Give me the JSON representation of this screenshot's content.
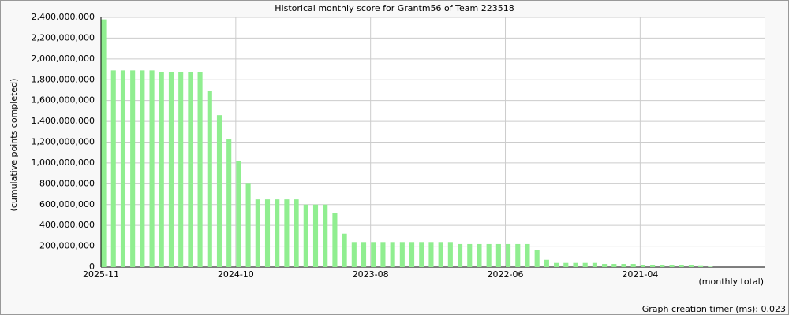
{
  "chart_data": {
    "type": "bar",
    "title": "Historical monthly score for Grantm56 of Team 223518",
    "y_label": "(cumulative points completed)",
    "x_label": "(monthly total)",
    "footer": "Graph creation timer (ms): 0.023",
    "color": "#90ee90",
    "grid": true,
    "categories": [
      "2025-11",
      null,
      null,
      null,
      null,
      null,
      null,
      null,
      null,
      null,
      null,
      null,
      null,
      null,
      "2024-10",
      null,
      null,
      null,
      null,
      null,
      null,
      null,
      null,
      null,
      null,
      null,
      null,
      null,
      "2023-08",
      null,
      null,
      null,
      null,
      null,
      null,
      null,
      null,
      null,
      null,
      null,
      null,
      null,
      "2022-06",
      null,
      null,
      null,
      null,
      null,
      null,
      null,
      null,
      null,
      null,
      null,
      null,
      null,
      "2021-04",
      null,
      null,
      null,
      null,
      null,
      null,
      null,
      null,
      null,
      null,
      null,
      null
    ],
    "values": [
      2380000000,
      1890000000,
      1890000000,
      1890000000,
      1890000000,
      1890000000,
      1870000000,
      1870000000,
      1870000000,
      1870000000,
      1870000000,
      1690000000,
      1460000000,
      1230000000,
      1020000000,
      800000000,
      650000000,
      650000000,
      650000000,
      650000000,
      650000000,
      600000000,
      600000000,
      600000000,
      520000000,
      320000000,
      240000000,
      240000000,
      240000000,
      240000000,
      240000000,
      240000000,
      240000000,
      240000000,
      240000000,
      240000000,
      240000000,
      220000000,
      220000000,
      220000000,
      220000000,
      220000000,
      220000000,
      220000000,
      220000000,
      160000000,
      70000000,
      40000000,
      40000000,
      40000000,
      40000000,
      40000000,
      30000000,
      30000000,
      30000000,
      30000000,
      20000000,
      20000000,
      20000000,
      20000000,
      20000000,
      20000000,
      10000000,
      5000000,
      0,
      0,
      0,
      0,
      0
    ],
    "ylim": [
      0,
      2400000000
    ],
    "yticks": [
      0,
      {
        "value": 200000000,
        "label": "200,000,000"
      },
      {
        "value": 400000000,
        "label": "400,000,000"
      },
      {
        "value": 600000000,
        "label": "600,000,000"
      },
      {
        "value": 800000000,
        "label": "800,000,000"
      },
      {
        "value": 1000000000,
        "label": "1,000,000,000"
      },
      {
        "value": 1200000000,
        "label": "1,200,000,000"
      },
      {
        "value": 1400000000,
        "label": "1,400,000,000"
      },
      {
        "value": 1600000000,
        "label": "1,600,000,000"
      },
      {
        "value": 1800000000,
        "label": "1,800,000,000"
      },
      {
        "value": 2000000000,
        "label": "2,000,000,000"
      },
      {
        "value": 2200000000,
        "label": "2,200,000,000"
      },
      {
        "value": 2400000000,
        "label": "2,400,000,000"
      }
    ]
  }
}
